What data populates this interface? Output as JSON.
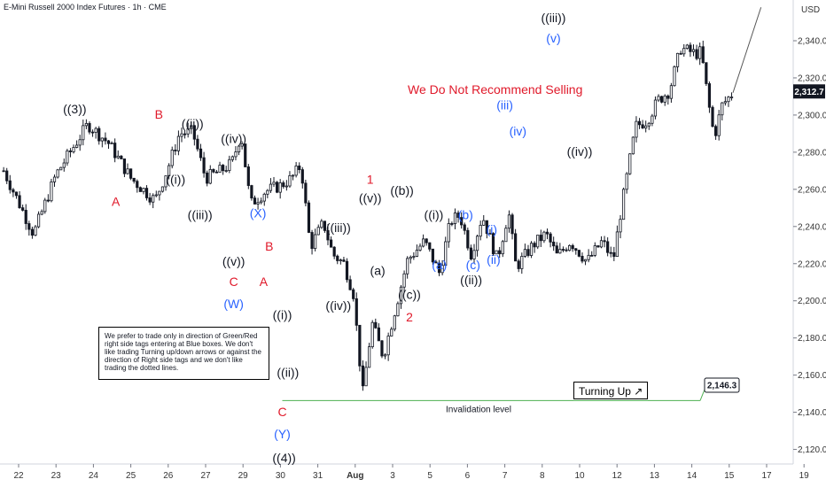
{
  "header": {
    "symbol_line": "E-Mini Russell 2000 Index Futures · 1h · CME",
    "currency": "USD"
  },
  "headline": "We Do Not Recommend Selling",
  "note": "We prefer to trade only in direction of Green/Red right side tags entering at Blue boxes. We don't like trading Turning up/down arrows or against the direction of Right side tags and we don't like trading the dotted lines.",
  "turning_up": {
    "text": "Turning Up",
    "arrow": "↗"
  },
  "invalidation": {
    "text": "Invalidation level",
    "value": "2,146.3",
    "color": "#4caf50"
  },
  "current_price": {
    "value": "2,312.7",
    "price": 2312.7,
    "bg": "#131722"
  },
  "colors": {
    "black": "#131722",
    "red": "#e0192a",
    "blue": "#2962ff",
    "candle": "#131722"
  },
  "chart_data": {
    "type": "candlestick",
    "ylabel": "USD",
    "ylim": [
      2110,
      2360
    ],
    "y_ticks": [
      "2,340.0",
      "2,320.0",
      "2,300.0",
      "2,280.0",
      "2,260.0",
      "2,240.0",
      "2,220.0",
      "2,200.0",
      "2,180.0",
      "2,160.0",
      "2,140.0",
      "2,120.0"
    ],
    "y_tick_values": [
      2340,
      2320,
      2300,
      2280,
      2260,
      2240,
      2220,
      2200,
      2180,
      2160,
      2140,
      2120
    ],
    "x_ticks": [
      "22",
      "23",
      "24",
      "25",
      "26",
      "27",
      "29",
      "30",
      "31",
      "Aug",
      "3",
      "5",
      "6",
      "7",
      "8",
      "10",
      "12",
      "13",
      "14",
      "15",
      "17",
      "19"
    ],
    "x_tick_days": [
      0,
      1,
      2,
      3,
      4,
      5,
      6,
      7,
      8,
      9,
      10,
      11,
      12,
      13,
      14,
      15,
      16,
      17,
      18,
      19,
      20,
      21
    ],
    "price_path": [
      {
        "d": -0.4,
        "p": 2270
      },
      {
        "d": 0.4,
        "p": 2236
      },
      {
        "d": 1.0,
        "p": 2268
      },
      {
        "d": 1.85,
        "p": 2295
      },
      {
        "d": 2.4,
        "p": 2285
      },
      {
        "d": 3.0,
        "p": 2266
      },
      {
        "d": 3.65,
        "p": 2254
      },
      {
        "d": 4.0,
        "p": 2272
      },
      {
        "d": 4.3,
        "p": 2290
      },
      {
        "d": 4.65,
        "p": 2291
      },
      {
        "d": 5.0,
        "p": 2266
      },
      {
        "d": 5.4,
        "p": 2270
      },
      {
        "d": 5.7,
        "p": 2274
      },
      {
        "d": 5.95,
        "p": 2290
      },
      {
        "d": 6.2,
        "p": 2252
      },
      {
        "d": 6.6,
        "p": 2259
      },
      {
        "d": 7.0,
        "p": 2262
      },
      {
        "d": 7.3,
        "p": 2266
      },
      {
        "d": 7.55,
        "p": 2273
      },
      {
        "d": 7.8,
        "p": 2229
      },
      {
        "d": 8.15,
        "p": 2242
      },
      {
        "d": 8.4,
        "p": 2225
      },
      {
        "d": 8.7,
        "p": 2220
      },
      {
        "d": 8.95,
        "p": 2204
      },
      {
        "d": 9.2,
        "p": 2150
      },
      {
        "d": 9.45,
        "p": 2188
      },
      {
        "d": 9.75,
        "p": 2170
      },
      {
        "d": 10.4,
        "p": 2222
      },
      {
        "d": 10.85,
        "p": 2232
      },
      {
        "d": 11.25,
        "p": 2215
      },
      {
        "d": 11.55,
        "p": 2243
      },
      {
        "d": 11.8,
        "p": 2246
      },
      {
        "d": 12.1,
        "p": 2225
      },
      {
        "d": 12.4,
        "p": 2246
      },
      {
        "d": 12.8,
        "p": 2222
      },
      {
        "d": 13.1,
        "p": 2248
      },
      {
        "d": 13.3,
        "p": 2218
      },
      {
        "d": 13.75,
        "p": 2230
      },
      {
        "d": 14.1,
        "p": 2236
      },
      {
        "d": 14.4,
        "p": 2224
      },
      {
        "d": 14.75,
        "p": 2232
      },
      {
        "d": 15.2,
        "p": 2221
      },
      {
        "d": 15.6,
        "p": 2232
      },
      {
        "d": 15.9,
        "p": 2222
      },
      {
        "d": 16.1,
        "p": 2248
      },
      {
        "d": 16.5,
        "p": 2294
      },
      {
        "d": 16.8,
        "p": 2297
      },
      {
        "d": 17.1,
        "p": 2308
      },
      {
        "d": 17.4,
        "p": 2313
      },
      {
        "d": 17.7,
        "p": 2336
      },
      {
        "d": 18.1,
        "p": 2333
      },
      {
        "d": 18.25,
        "p": 2334
      },
      {
        "d": 18.45,
        "p": 2306
      },
      {
        "d": 18.6,
        "p": 2288
      },
      {
        "d": 18.8,
        "p": 2305
      },
      {
        "d": 19.1,
        "p": 2312
      }
    ],
    "projection": [
      {
        "d": 19.1,
        "p": 2312
      },
      {
        "d": 19.85,
        "p": 2358
      }
    ],
    "invalidation_level": 2146.3,
    "wave_labels": [
      {
        "text": "((3))",
        "d": 1.5,
        "p": 2301,
        "color": "black"
      },
      {
        "text": "B",
        "d": 3.75,
        "p": 2298,
        "color": "red"
      },
      {
        "text": "A",
        "d": 2.6,
        "p": 2251,
        "color": "red"
      },
      {
        "text": "((i))",
        "d": 4.2,
        "p": 2263,
        "color": "black"
      },
      {
        "text": "((ii))",
        "d": 4.65,
        "p": 2293,
        "color": "black"
      },
      {
        "text": "((iii))",
        "d": 4.85,
        "p": 2244,
        "color": "black"
      },
      {
        "text": "((iv))",
        "d": 5.75,
        "p": 2285,
        "color": "black"
      },
      {
        "text": "((v))",
        "d": 5.75,
        "p": 2219,
        "color": "black"
      },
      {
        "text": "C",
        "d": 5.75,
        "p": 2208,
        "color": "red"
      },
      {
        "text": "(W)",
        "d": 5.75,
        "p": 2196,
        "color": "blue"
      },
      {
        "text": "(X)",
        "d": 6.4,
        "p": 2245,
        "color": "blue"
      },
      {
        "text": "B",
        "d": 6.7,
        "p": 2227,
        "color": "red"
      },
      {
        "text": "A",
        "d": 6.55,
        "p": 2208,
        "color": "red"
      },
      {
        "text": "((i))",
        "d": 7.05,
        "p": 2190,
        "color": "black"
      },
      {
        "text": "((ii))",
        "d": 7.2,
        "p": 2159,
        "color": "black"
      },
      {
        "text": "C",
        "d": 7.05,
        "p": 2138,
        "color": "red"
      },
      {
        "text": "(Y)",
        "d": 7.05,
        "p": 2126,
        "color": "blue"
      },
      {
        "text": "((4))",
        "d": 7.1,
        "p": 2113,
        "color": "black"
      },
      {
        "text": "((iii))",
        "d": 8.55,
        "p": 2237,
        "color": "black"
      },
      {
        "text": "((iv))",
        "d": 8.55,
        "p": 2195,
        "color": "black"
      },
      {
        "text": "1",
        "d": 9.4,
        "p": 2263,
        "color": "red"
      },
      {
        "text": "((v))",
        "d": 9.4,
        "p": 2253,
        "color": "black"
      },
      {
        "text": "(a)",
        "d": 9.6,
        "p": 2214,
        "color": "black"
      },
      {
        "text": "((b))",
        "d": 10.25,
        "p": 2257,
        "color": "black"
      },
      {
        "text": "((c))",
        "d": 10.45,
        "p": 2201,
        "color": "black"
      },
      {
        "text": "2",
        "d": 10.45,
        "p": 2189,
        "color": "red"
      },
      {
        "text": "((i))",
        "d": 11.1,
        "p": 2244,
        "color": "black"
      },
      {
        "text": "(a)",
        "d": 11.25,
        "p": 2217,
        "color": "blue"
      },
      {
        "text": "(b)",
        "d": 11.95,
        "p": 2244,
        "color": "blue"
      },
      {
        "text": "(c)",
        "d": 12.15,
        "p": 2217,
        "color": "blue"
      },
      {
        "text": "((ii))",
        "d": 12.1,
        "p": 2209,
        "color": "black"
      },
      {
        "text": "(i)",
        "d": 12.65,
        "p": 2236,
        "color": "blue"
      },
      {
        "text": "(ii)",
        "d": 12.7,
        "p": 2220,
        "color": "blue"
      },
      {
        "text": "(iii)",
        "d": 13.0,
        "p": 2303,
        "color": "blue"
      },
      {
        "text": "(iv)",
        "d": 13.35,
        "p": 2289,
        "color": "blue"
      },
      {
        "text": "(v)",
        "d": 14.3,
        "p": 2339,
        "color": "blue"
      },
      {
        "text": "((iii))",
        "d": 14.3,
        "p": 2350,
        "color": "black"
      },
      {
        "text": "((iv))",
        "d": 15.0,
        "p": 2278,
        "color": "black"
      }
    ]
  }
}
